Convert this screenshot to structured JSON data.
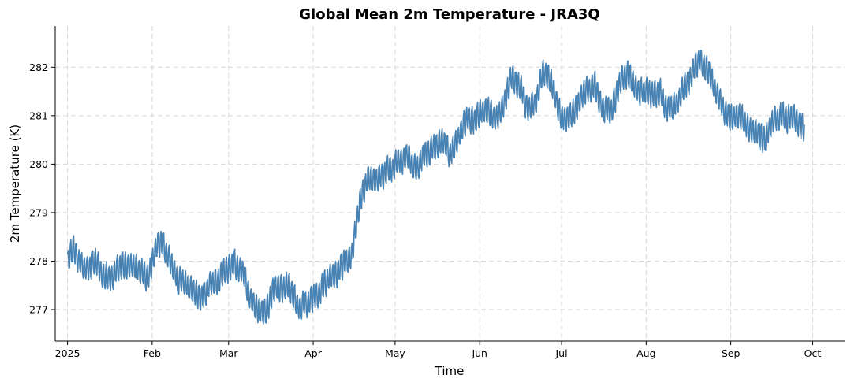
{
  "chart_data": {
    "type": "line",
    "title": "Global Mean 2m Temperature - JRA3Q",
    "xlabel": "Time",
    "ylabel": "2m Temperature (K)",
    "xlim_day": [
      -4.5,
      285
    ],
    "ylim": [
      276.35,
      282.85
    ],
    "x_ticks": [
      {
        "label": "2025",
        "day": 0
      },
      {
        "label": "Feb",
        "day": 31
      },
      {
        "label": "Mar",
        "day": 59
      },
      {
        "label": "Apr",
        "day": 90
      },
      {
        "label": "May",
        "day": 120
      },
      {
        "label": "Jun",
        "day": 151
      },
      {
        "label": "Jul",
        "day": 181
      },
      {
        "label": "Aug",
        "day": 212
      },
      {
        "label": "Sep",
        "day": 243
      },
      {
        "label": "Oct",
        "day": 273
      }
    ],
    "y_ticks": [
      277,
      278,
      279,
      280,
      281,
      282
    ],
    "grid": true,
    "color": "#4682b4",
    "series": [
      {
        "name": "JRA3Q",
        "samples_per_day": 4,
        "diurnal_amplitude": 0.3,
        "x_day": [
          0,
          2,
          4,
          7,
          10,
          13,
          16,
          20,
          24,
          28,
          30,
          31,
          33,
          35,
          38,
          41,
          44,
          47,
          50,
          53,
          56,
          59,
          61,
          64,
          67,
          70,
          73,
          75,
          78,
          80,
          82,
          85,
          88,
          90,
          93,
          96,
          99,
          102,
          104,
          105,
          107,
          110,
          113,
          116,
          119,
          122,
          125,
          128,
          131,
          134,
          137,
          140,
          143,
          146,
          149,
          151,
          153,
          155,
          157,
          160,
          163,
          166,
          169,
          172,
          174,
          176,
          178,
          181,
          184,
          187,
          190,
          193,
          196,
          199,
          202,
          205,
          208,
          211,
          214,
          217,
          220,
          223,
          226,
          229,
          232,
          235,
          238,
          241,
          244,
          247,
          250,
          253,
          256,
          259,
          262,
          265,
          268,
          270
        ],
        "y_values": [
          277.95,
          278.2,
          278.0,
          277.8,
          278.0,
          277.7,
          277.75,
          277.9,
          277.85,
          277.75,
          277.6,
          278.0,
          278.3,
          278.4,
          277.9,
          277.7,
          277.5,
          277.3,
          277.3,
          277.55,
          277.6,
          277.8,
          277.9,
          277.75,
          277.3,
          277.0,
          276.95,
          277.3,
          277.5,
          277.45,
          277.3,
          277.05,
          277.1,
          277.3,
          277.5,
          277.7,
          277.85,
          278.0,
          278.1,
          278.4,
          279.2,
          279.6,
          279.75,
          279.8,
          279.9,
          280.1,
          280.25,
          279.85,
          280.25,
          280.3,
          280.45,
          280.2,
          280.55,
          280.9,
          280.8,
          281.0,
          281.05,
          281.0,
          280.85,
          281.3,
          281.8,
          281.5,
          281.15,
          281.3,
          281.75,
          281.9,
          281.6,
          281.0,
          280.95,
          281.3,
          281.55,
          281.6,
          281.3,
          281.1,
          281.65,
          281.9,
          281.6,
          281.5,
          281.4,
          281.5,
          281.2,
          281.3,
          281.45,
          281.9,
          282.1,
          281.85,
          281.5,
          281.0,
          281.0,
          280.95,
          280.7,
          280.6,
          280.55,
          280.9,
          281.05,
          281.0,
          280.9,
          280.6
        ]
      }
    ]
  }
}
